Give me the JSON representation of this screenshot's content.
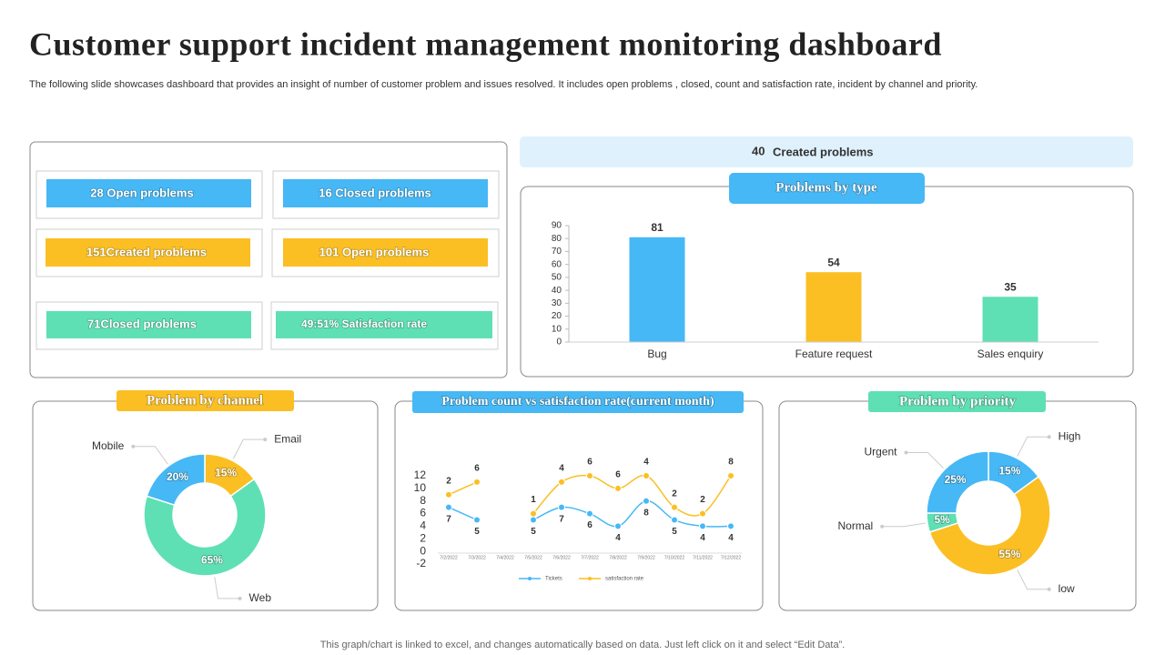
{
  "header": {
    "title": "Customer support incident management monitoring dashboard",
    "subtitle": "The following slide showcases dashboard that provides an insight of number of customer problem and issues resolved. It includes open problems , closed, count and satisfaction rate, incident by channel and priority."
  },
  "kpis": [
    "28 Open problems",
    "16 Closed problems",
    "151Created problems",
    "101 Open problems",
    "71Closed problems",
    "49:51% Satisfaction rate"
  ],
  "created": {
    "count": 40,
    "label": "Created problems"
  },
  "chart_data": [
    {
      "type": "bar",
      "title": "Problems by type",
      "categories": [
        "Bug",
        "Feature request",
        "Sales enquiry"
      ],
      "values": [
        81,
        54,
        35
      ],
      "colors": [
        "#46b8f5",
        "#fbbf24",
        "#5ee0b4"
      ],
      "ylim": [
        0,
        90
      ],
      "yticks": [
        0,
        10,
        20,
        30,
        40,
        50,
        60,
        70,
        80,
        90
      ]
    },
    {
      "type": "donut",
      "title": "Problem by channel",
      "categories": [
        "Email",
        "Web",
        "Mobile"
      ],
      "values": [
        15,
        65,
        20
      ],
      "value_labels": [
        "15%",
        "65%",
        "20%"
      ],
      "colors": [
        "#fbbf24",
        "#5ee0b4",
        "#46b8f5"
      ]
    },
    {
      "type": "line",
      "title": "Problem count vs satisfaction rate(current month)",
      "stacked": true,
      "x": [
        "7/2/2022",
        "7/3/2022",
        "7/4/2022",
        "7/5/2022",
        "7/6/2022",
        "7/7/2022",
        "7/8/2022",
        "7/9/2022",
        "7/10/2022",
        "7/11/2022",
        "7/12/2022"
      ],
      "series": [
        {
          "name": "Tickets",
          "color": "#46b8f5",
          "values": [
            7,
            5,
            null,
            5,
            7,
            6,
            4,
            8,
            5,
            4,
            4
          ]
        },
        {
          "name": "satisfaction rate",
          "color": "#fbbf24",
          "values": [
            2,
            6,
            null,
            1,
            4,
            6,
            6,
            4,
            2,
            2,
            8
          ]
        }
      ],
      "ylim": [
        -2,
        12
      ],
      "yticks": [
        -2,
        0,
        2,
        4,
        6,
        8,
        10,
        12
      ]
    },
    {
      "type": "donut",
      "title": "Problem by priority",
      "categories": [
        "High",
        "low",
        "Normal",
        "Urgent"
      ],
      "values": [
        15,
        55,
        5,
        25
      ],
      "value_labels": [
        "15%",
        "55%",
        "5%",
        "25%"
      ],
      "colors": [
        "#46b8f5",
        "#fbbf24",
        "#5ee0b4",
        "#46b8f5"
      ]
    }
  ],
  "footer": "This graph/chart is linked to excel, and changes automatically based on data. Just left click on it and select “Edit Data”."
}
